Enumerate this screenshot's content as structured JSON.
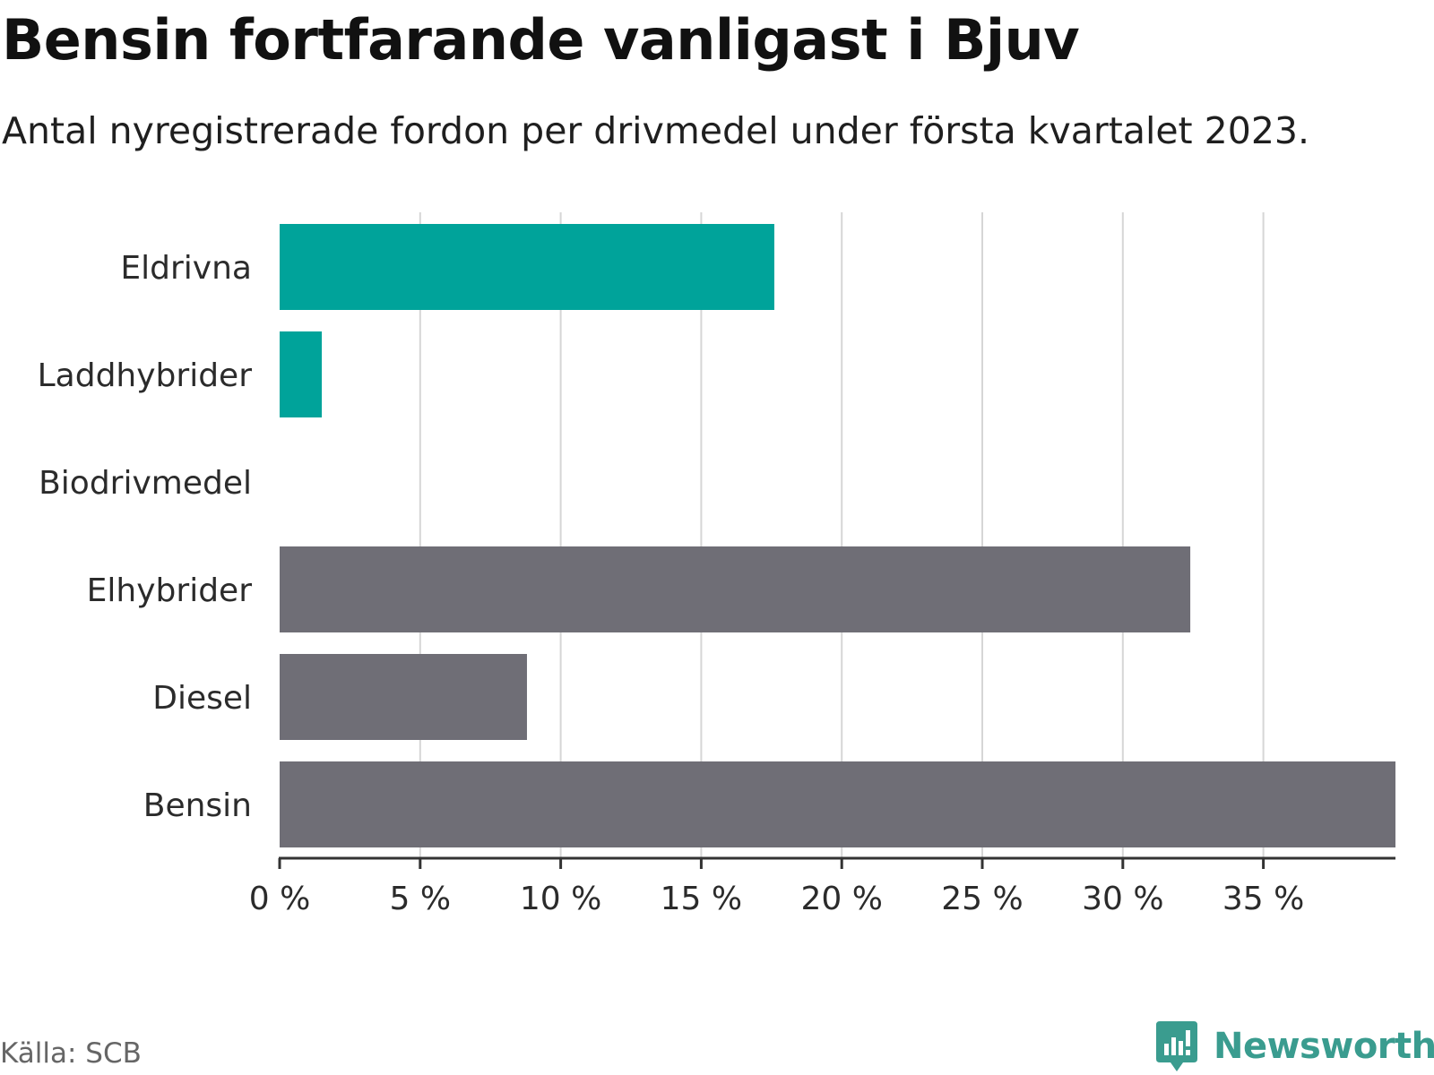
{
  "header": {
    "title": "Bensin fortfarande vanligast i Bjuv",
    "subtitle": "Antal nyregistrerade fordon per drivmedel under första kvartalet 2023."
  },
  "footer": {
    "source": "Källa: SCB",
    "brand": "Newsworthy",
    "brand_icon": "bar-chart-speech-bubble-icon"
  },
  "colors": {
    "highlight": "#00a39a",
    "default": "#6f6e76",
    "grid": "#d6d6d6",
    "axis": "#333333",
    "brand": "#3a9c8f"
  },
  "chart_data": {
    "type": "bar",
    "orientation": "horizontal",
    "categories": [
      "Eldrivna",
      "Laddhybrider",
      "Biodrivmedel",
      "Elhybrider",
      "Diesel",
      "Bensin"
    ],
    "values": [
      17.6,
      1.5,
      0,
      32.4,
      8.8,
      39.7
    ],
    "highlighted": [
      true,
      true,
      false,
      false,
      false,
      false
    ],
    "unit": "%",
    "xlim": [
      0,
      39.7
    ],
    "xticks": [
      0,
      5,
      10,
      15,
      20,
      25,
      30,
      35
    ],
    "xtick_labels": [
      "0 %",
      "5 %",
      "10 %",
      "15 %",
      "20 %",
      "25 %",
      "30 %",
      "35 %"
    ],
    "grid": true,
    "title": "Bensin fortfarande vanligast i Bjuv",
    "subtitle": "Antal nyregistrerade fordon per drivmedel under första kvartalet 2023."
  }
}
